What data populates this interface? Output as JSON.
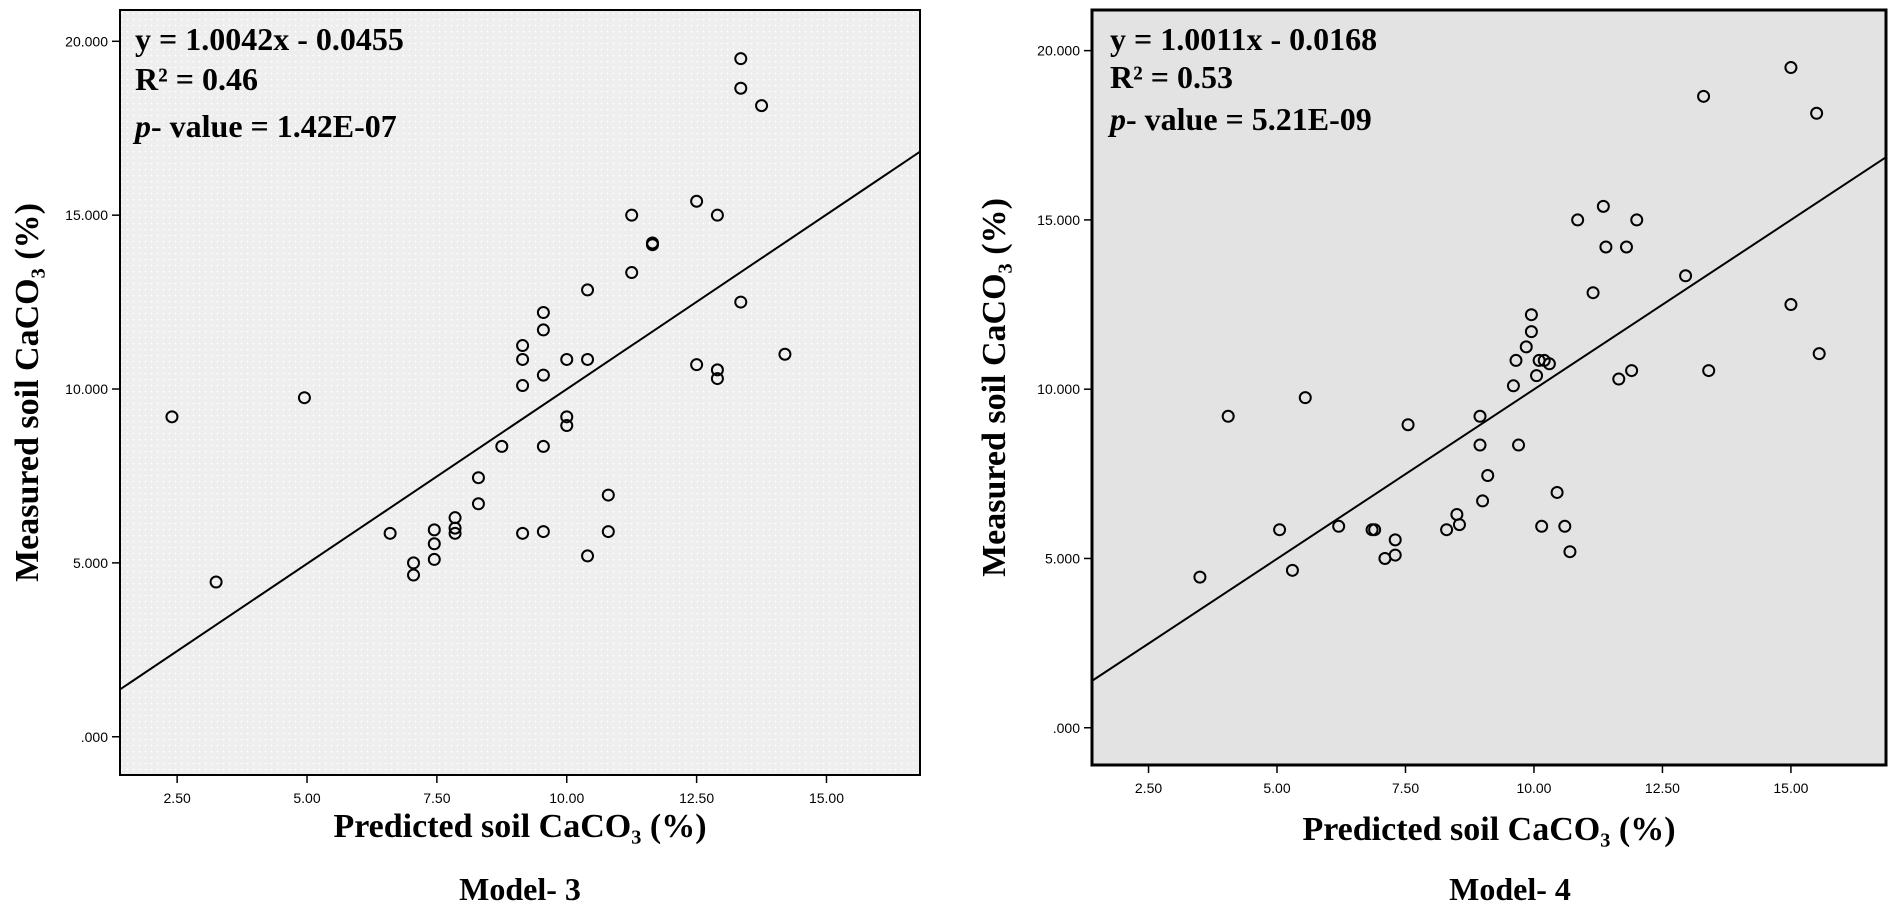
{
  "chart_data": [
    {
      "type": "scatter",
      "caption": "Model- 3",
      "xlabel": "Predicted soil CaCO₃ (%)",
      "ylabel": "Measured soil CaCO₃ (%)",
      "xlim": [
        1.4,
        16.8
      ],
      "ylim": [
        -1.1,
        20.9
      ],
      "x_ticks": [
        "2.50",
        "5.00",
        "7.50",
        "10.00",
        "12.50",
        "15.00"
      ],
      "y_ticks": [
        ".000",
        "5.000",
        "10.000",
        "15.000",
        "20.000"
      ],
      "annotations": {
        "line1": "y = 1.0042x - 0.0455",
        "line2": "R² = 0.46",
        "line3_italic": "p",
        "line3_rest": "- value = 1.42E-07"
      },
      "trendline": {
        "slope": 1.0042,
        "intercept": -0.0455
      },
      "background": "#eeeeee",
      "points": [
        [
          2.4,
          9.2
        ],
        [
          3.25,
          4.45
        ],
        [
          4.95,
          9.75
        ],
        [
          6.6,
          5.85
        ],
        [
          7.05,
          5.0
        ],
        [
          7.05,
          4.65
        ],
        [
          7.45,
          5.95
        ],
        [
          7.45,
          5.55
        ],
        [
          7.45,
          5.1
        ],
        [
          7.85,
          6.3
        ],
        [
          7.85,
          6.0
        ],
        [
          7.85,
          5.85
        ],
        [
          8.3,
          7.45
        ],
        [
          8.3,
          6.7
        ],
        [
          8.75,
          8.35
        ],
        [
          9.15,
          11.25
        ],
        [
          9.15,
          10.85
        ],
        [
          9.15,
          10.1
        ],
        [
          9.15,
          5.85
        ],
        [
          9.55,
          12.2
        ],
        [
          9.55,
          11.7
        ],
        [
          9.55,
          10.4
        ],
        [
          9.55,
          8.35
        ],
        [
          9.55,
          5.9
        ],
        [
          10.0,
          10.85
        ],
        [
          10.0,
          9.2
        ],
        [
          10.0,
          8.95
        ],
        [
          10.4,
          12.85
        ],
        [
          10.4,
          10.85
        ],
        [
          10.4,
          5.2
        ],
        [
          10.8,
          6.95
        ],
        [
          10.8,
          5.9
        ],
        [
          11.25,
          15.0
        ],
        [
          11.25,
          13.35
        ],
        [
          11.65,
          14.2
        ],
        [
          11.65,
          14.15
        ],
        [
          12.5,
          15.4
        ],
        [
          12.5,
          10.7
        ],
        [
          12.9,
          15.0
        ],
        [
          12.9,
          10.55
        ],
        [
          12.9,
          10.3
        ],
        [
          13.35,
          19.5
        ],
        [
          13.35,
          18.65
        ],
        [
          13.35,
          12.5
        ],
        [
          13.75,
          18.15
        ],
        [
          14.2,
          11.0
        ]
      ]
    },
    {
      "type": "scatter",
      "caption": "Model- 4",
      "xlabel": "Predicted soil CaCO₃ (%)",
      "ylabel": "Measured soil CaCO₃ (%)",
      "xlim": [
        1.4,
        16.85
      ],
      "ylim": [
        -1.1,
        21.2
      ],
      "x_ticks": [
        "2.50",
        "5.00",
        "7.50",
        "10.00",
        "12.50",
        "15.00"
      ],
      "y_ticks": [
        ".000",
        "5.000",
        "10.000",
        "15.000",
        "20.000"
      ],
      "annotations": {
        "line1": "y = 1.0011x - 0.0168",
        "line2": "R² = 0.53",
        "line3_italic": "p",
        "line3_rest": "- value = 5.21E-09"
      },
      "trendline": {
        "slope": 1.0011,
        "intercept": -0.0168
      },
      "background": "#e3e3e3",
      "points": [
        [
          3.5,
          4.45
        ],
        [
          4.05,
          9.2
        ],
        [
          5.05,
          5.85
        ],
        [
          5.3,
          4.65
        ],
        [
          5.55,
          9.75
        ],
        [
          6.2,
          5.95
        ],
        [
          6.85,
          5.85
        ],
        [
          6.9,
          5.85
        ],
        [
          7.1,
          5.0
        ],
        [
          7.3,
          5.55
        ],
        [
          7.3,
          5.1
        ],
        [
          7.55,
          8.95
        ],
        [
          8.3,
          5.85
        ],
        [
          8.5,
          6.3
        ],
        [
          8.55,
          6.0
        ],
        [
          8.95,
          9.2
        ],
        [
          8.95,
          8.35
        ],
        [
          9.0,
          6.7
        ],
        [
          9.1,
          7.45
        ],
        [
          9.6,
          10.1
        ],
        [
          9.65,
          10.85
        ],
        [
          9.7,
          8.35
        ],
        [
          9.85,
          11.25
        ],
        [
          9.95,
          12.2
        ],
        [
          9.95,
          11.7
        ],
        [
          10.05,
          10.4
        ],
        [
          10.1,
          10.85
        ],
        [
          10.2,
          10.85
        ],
        [
          10.3,
          10.75
        ],
        [
          10.15,
          5.95
        ],
        [
          10.45,
          6.95
        ],
        [
          10.6,
          5.95
        ],
        [
          10.7,
          5.2
        ],
        [
          10.85,
          15.0
        ],
        [
          11.15,
          12.85
        ],
        [
          11.35,
          15.4
        ],
        [
          11.4,
          14.2
        ],
        [
          11.65,
          10.3
        ],
        [
          11.8,
          14.2
        ],
        [
          11.9,
          10.55
        ],
        [
          12.0,
          15.0
        ],
        [
          12.95,
          13.35
        ],
        [
          13.3,
          18.65
        ],
        [
          13.4,
          10.55
        ],
        [
          15.0,
          19.5
        ],
        [
          15.0,
          12.5
        ],
        [
          15.5,
          18.15
        ],
        [
          15.55,
          11.05
        ]
      ]
    }
  ]
}
